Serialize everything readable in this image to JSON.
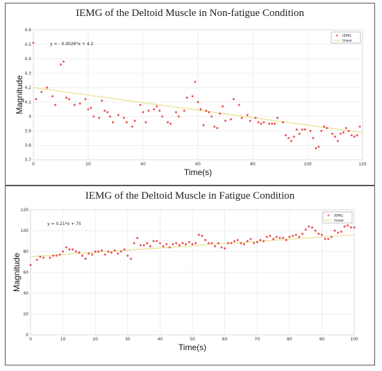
{
  "chart_data": [
    {
      "type": "scatter",
      "title": "IEMG of the Deltoid Muscle in Non-fatigue Condition",
      "xlabel": "Time(s)",
      "ylabel": "Magnitude",
      "xlim": [
        0,
        120
      ],
      "ylim": [
        3.7,
        4.6
      ],
      "xticks": [
        "0",
        "20",
        "40",
        "60",
        "80",
        "100",
        "120"
      ],
      "yticks": [
        "3.7",
        "3.8",
        "3.9",
        "4",
        "4.1",
        "4.2",
        "4.3",
        "4.4",
        "4.5",
        "4.6"
      ],
      "equation": "y = - 0.0026*x + 4.2",
      "grid": true,
      "legend_position": "top-right",
      "legend": [
        "IEMG",
        "linear"
      ],
      "colors": {
        "points": "#e84a4a",
        "trend": "#e8e08a"
      },
      "trend": {
        "slope": -0.0026,
        "intercept": 4.2
      },
      "series": [
        {
          "name": "IEMG",
          "x": [
            0,
            1,
            3,
            5,
            7,
            8,
            10,
            11,
            12,
            13,
            15,
            17,
            19,
            20,
            21,
            22,
            24,
            25,
            26,
            27,
            28,
            29,
            31,
            33,
            34,
            36,
            37,
            39,
            40,
            41,
            42,
            44,
            45,
            46,
            47,
            49,
            50,
            52,
            53,
            55,
            56,
            58,
            59,
            60,
            61,
            62,
            63,
            64,
            65,
            66,
            67,
            68,
            69,
            70,
            72,
            73,
            75,
            76,
            78,
            79,
            81,
            82,
            83,
            84,
            86,
            87,
            88,
            89,
            91,
            92,
            93,
            94,
            95,
            96,
            97,
            98,
            99,
            101,
            102,
            103,
            104,
            105,
            106,
            107,
            109,
            110,
            111,
            112,
            113,
            114,
            115,
            116,
            117,
            118,
            119
          ],
          "y": [
            4.51,
            4.12,
            4.17,
            4.2,
            4.14,
            4.08,
            4.36,
            4.38,
            4.13,
            4.12,
            4.08,
            4.09,
            4.12,
            4.05,
            4.06,
            4.0,
            3.99,
            4.11,
            4.04,
            4.03,
            4.0,
            3.96,
            4.01,
            3.99,
            3.96,
            3.93,
            3.97,
            4.08,
            4.03,
            3.96,
            4.04,
            4.05,
            4.07,
            4.04,
            4.0,
            3.96,
            3.95,
            4.03,
            4.0,
            4.04,
            4.13,
            4.14,
            4.24,
            4.1,
            4.05,
            3.94,
            4.04,
            4.03,
            4.0,
            3.93,
            3.92,
            4.02,
            4.07,
            3.97,
            3.98,
            4.12,
            4.08,
            3.99,
            4.01,
            3.97,
            3.99,
            3.96,
            3.95,
            3.96,
            3.95,
            3.95,
            3.95,
            3.99,
            3.96,
            3.87,
            3.85,
            3.83,
            3.86,
            3.91,
            3.88,
            3.91,
            3.91,
            3.9,
            3.85,
            3.78,
            3.79,
            3.9,
            3.93,
            3.92,
            3.88,
            3.86,
            3.83,
            3.88,
            3.89,
            3.92,
            3.9,
            3.87,
            3.86,
            3.87,
            3.93
          ]
        }
      ]
    },
    {
      "type": "scatter",
      "title": "IEMG of the Deltoid Muscle in Fatigue Condition",
      "xlabel": "Time(s)",
      "ylabel": "Magnitude",
      "xlim": [
        0,
        100
      ],
      "ylim": [
        0,
        120
      ],
      "xticks": [
        "0",
        "10",
        "20",
        "30",
        "40",
        "50",
        "60",
        "70",
        "80",
        "90",
        "100"
      ],
      "yticks": [
        "0",
        "20",
        "40",
        "60",
        "80",
        "100",
        "120"
      ],
      "equation": "y = 0.21*x + 75",
      "grid": true,
      "legend_position": "top-right",
      "legend": [
        "IEMG",
        "linear"
      ],
      "colors": {
        "points": "#e84a4a",
        "trend": "#e8e08a"
      },
      "trend": {
        "slope": 0.21,
        "intercept": 75
      },
      "series": [
        {
          "name": "IEMG",
          "x": [
            0,
            2,
            3,
            4,
            6,
            7,
            8,
            9,
            10,
            11,
            12,
            13,
            14,
            15,
            16,
            17,
            18,
            19,
            20,
            21,
            22,
            23,
            24,
            25,
            26,
            27,
            28,
            29,
            30,
            31,
            32,
            33,
            34,
            35,
            36,
            37,
            38,
            39,
            40,
            41,
            42,
            43,
            44,
            45,
            46,
            47,
            48,
            49,
            50,
            51,
            52,
            53,
            54,
            55,
            56,
            57,
            58,
            59,
            60,
            61,
            62,
            63,
            64,
            65,
            66,
            67,
            68,
            69,
            70,
            71,
            72,
            73,
            74,
            75,
            76,
            77,
            78,
            79,
            80,
            81,
            82,
            83,
            84,
            85,
            86,
            87,
            88,
            89,
            90,
            91,
            92,
            93,
            94,
            95,
            96,
            97,
            98,
            99,
            100
          ],
          "y": [
            67,
            72,
            75,
            74,
            74,
            76,
            76,
            77,
            80,
            84,
            82,
            82,
            80,
            79,
            76,
            73,
            78,
            77,
            80,
            80,
            81,
            77,
            80,
            79,
            81,
            78,
            80,
            82,
            76,
            73,
            88,
            93,
            86,
            86,
            88,
            85,
            90,
            90,
            88,
            85,
            87,
            84,
            87,
            88,
            86,
            88,
            87,
            89,
            87,
            88,
            96,
            95,
            91,
            88,
            88,
            85,
            88,
            84,
            83,
            88,
            88,
            90,
            91,
            88,
            87,
            90,
            92,
            88,
            89,
            91,
            90,
            94,
            95,
            92,
            94,
            93,
            93,
            91,
            94,
            95,
            96,
            94,
            97,
            101,
            104,
            103,
            100,
            97,
            96,
            92,
            92,
            94,
            100,
            98,
            99,
            104,
            105,
            103,
            103
          ]
        }
      ]
    }
  ]
}
